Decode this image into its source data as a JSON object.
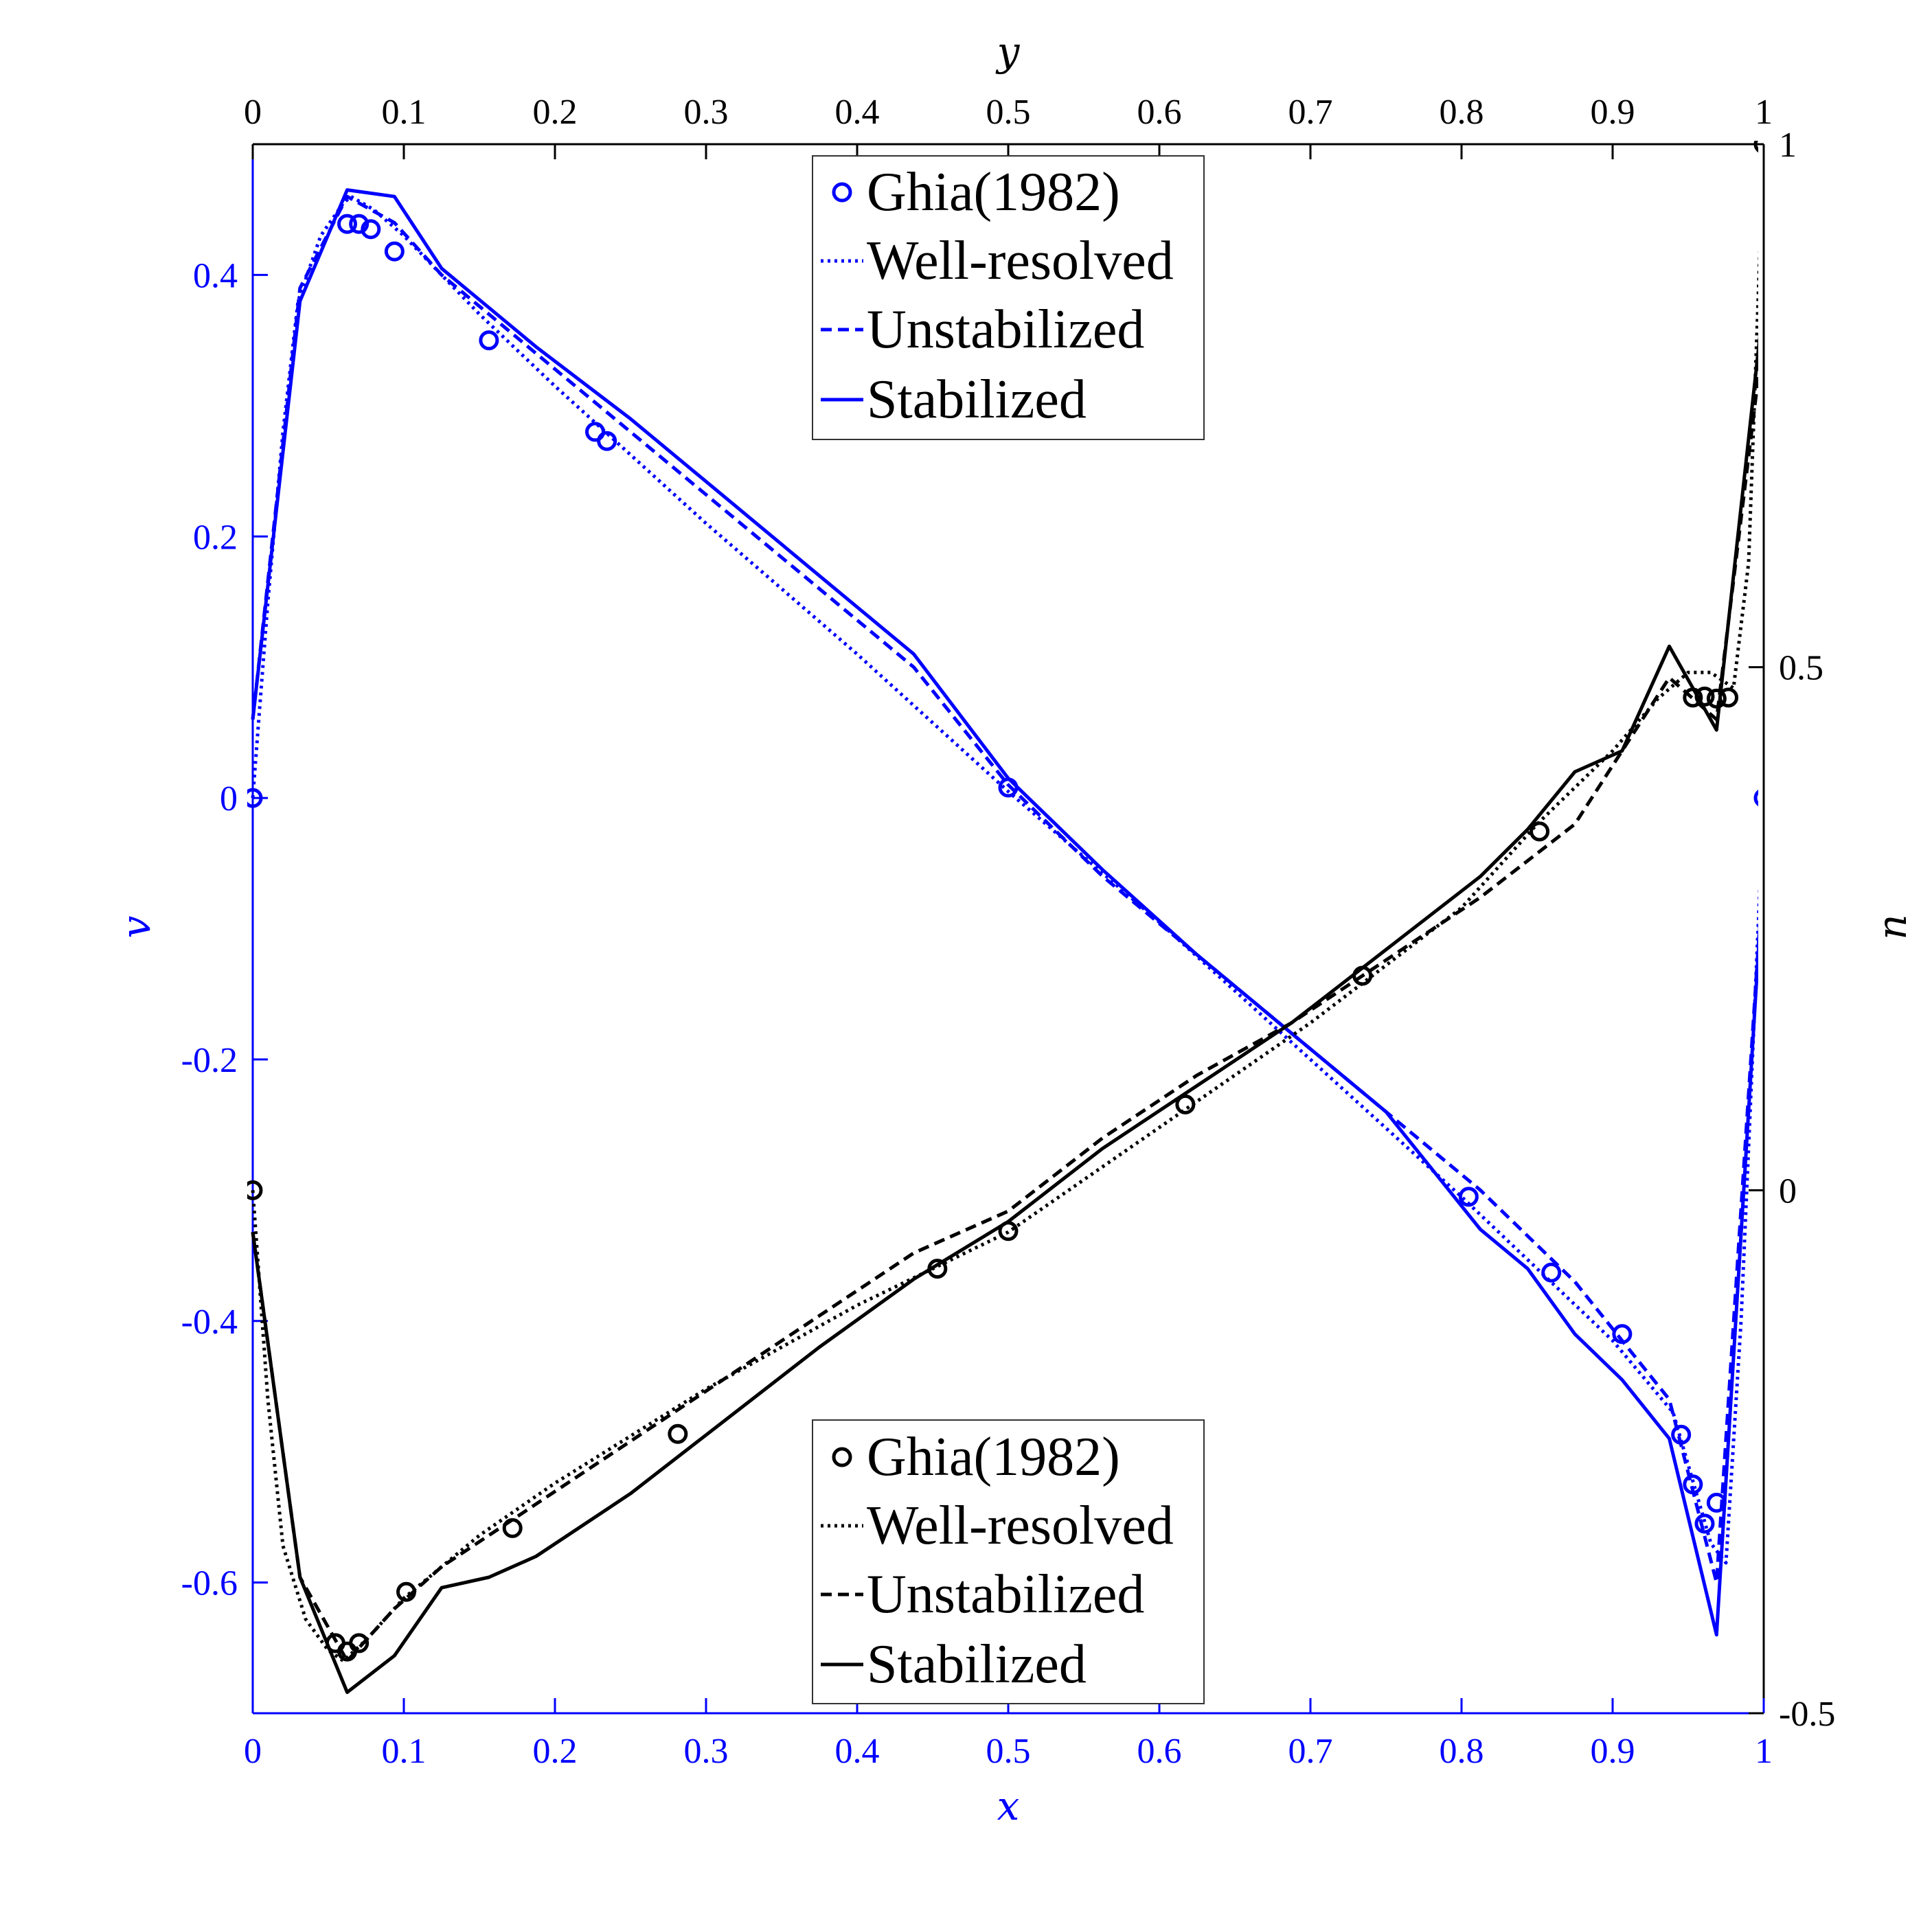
{
  "chart_data": {
    "type": "line",
    "axes": {
      "x": {
        "label": "x",
        "lim": [
          0,
          1
        ],
        "ticks": [
          "0",
          "0.1",
          "0.2",
          "0.3",
          "0.4",
          "0.5",
          "0.6",
          "0.7",
          "0.8",
          "0.9",
          "1"
        ],
        "color": "#0000ff"
      },
      "y_left": {
        "label": "v",
        "lim": [
          -0.7,
          0.5
        ],
        "ticks": [
          "-0.6",
          "-0.4",
          "-0.2",
          "0",
          "0.2",
          "0.4"
        ],
        "tick_values": [
          -0.6,
          -0.4,
          -0.2,
          0,
          0.2,
          0.4
        ],
        "color": "#0000ff"
      },
      "y_top": {
        "label": "y",
        "lim": [
          0,
          1
        ],
        "ticks": [
          "0",
          "0.1",
          "0.2",
          "0.3",
          "0.4",
          "0.5",
          "0.6",
          "0.7",
          "0.8",
          "0.9",
          "1"
        ],
        "color": "#000000"
      },
      "y_right": {
        "label": "u",
        "lim": [
          -0.5,
          1
        ],
        "ticks": [
          "-0.5",
          "0",
          "0.5",
          "1"
        ],
        "tick_values": [
          -0.5,
          0,
          0.5,
          1
        ],
        "color": "#000000"
      }
    },
    "legends": [
      {
        "position": "top-center",
        "color": "#0000ff",
        "entries": [
          "Ghia(1982)",
          "Well-resolved",
          "Unstabilized",
          "Stabilized"
        ]
      },
      {
        "position": "bottom-center",
        "color": "#000000",
        "entries": [
          "Ghia(1982)",
          "Well-resolved",
          "Unstabilized",
          "Stabilized"
        ]
      }
    ],
    "v_profile": {
      "axis": "x vs v",
      "color": "#0000ff",
      "ghia": {
        "x": [
          0,
          0.0625,
          0.0703,
          0.0781,
          0.0938,
          0.1563,
          0.2266,
          0.2344,
          0.5,
          0.8047,
          0.8594,
          0.9063,
          0.9453,
          0.9531,
          0.9609,
          0.9688,
          1
        ],
        "v": [
          0,
          0.439,
          0.439,
          0.435,
          0.418,
          0.35,
          0.28,
          0.273,
          0.008,
          -0.305,
          -0.363,
          -0.41,
          -0.487,
          -0.525,
          -0.555,
          -0.539,
          0
        ]
      },
      "well_resolved": {
        "x": [
          0,
          0.01,
          0.02,
          0.03,
          0.045,
          0.06,
          0.065,
          0.08,
          0.1,
          0.15,
          0.2,
          0.3,
          0.4,
          0.5,
          0.6,
          0.7,
          0.8,
          0.85,
          0.9,
          0.94,
          0.955,
          0.965,
          0.975,
          0.985,
          1
        ],
        "v": [
          0,
          0.15,
          0.28,
          0.38,
          0.43,
          0.455,
          0.46,
          0.45,
          0.43,
          0.37,
          0.315,
          0.21,
          0.11,
          0.005,
          -0.095,
          -0.2,
          -0.305,
          -0.36,
          -0.415,
          -0.47,
          -0.53,
          -0.57,
          -0.585,
          -0.4,
          0
        ]
      },
      "unstabilized": {
        "x": [
          0,
          0.03125,
          0.0625,
          0.09375,
          0.125,
          0.15625,
          0.1875,
          0.25,
          0.3125,
          0.375,
          0.4375,
          0.5,
          0.5625,
          0.625,
          0.6875,
          0.75,
          0.8125,
          0.875,
          0.9375,
          0.96875,
          1
        ],
        "v": [
          0.06,
          0.39,
          0.46,
          0.44,
          0.4,
          0.37,
          0.34,
          0.28,
          0.22,
          0.16,
          0.1,
          0.01,
          -0.06,
          -0.12,
          -0.18,
          -0.24,
          -0.3,
          -0.37,
          -0.46,
          -0.6,
          -0.05
        ]
      },
      "stabilized": {
        "x": [
          0,
          0.03125,
          0.0625,
          0.09375,
          0.125,
          0.15625,
          0.1875,
          0.25,
          0.3125,
          0.375,
          0.4375,
          0.5,
          0.5625,
          0.625,
          0.6875,
          0.75,
          0.8125,
          0.84375,
          0.875,
          0.90625,
          0.9375,
          0.96875,
          1
        ],
        "v": [
          0.06,
          0.38,
          0.465,
          0.46,
          0.405,
          0.375,
          0.345,
          0.29,
          0.23,
          0.17,
          0.11,
          0.015,
          -0.055,
          -0.12,
          -0.18,
          -0.24,
          -0.33,
          -0.36,
          -0.41,
          -0.445,
          -0.49,
          -0.64,
          -0.05
        ]
      }
    },
    "u_profile": {
      "axis": "y vs u",
      "color": "#000000",
      "ghia": {
        "y": [
          0,
          0.0547,
          0.0625,
          0.0703,
          0.1016,
          0.1719,
          0.2813,
          0.4531,
          0.5,
          0.6172,
          0.7344,
          0.8516,
          0.9531,
          0.9609,
          0.9688,
          0.9766,
          1
        ],
        "u": [
          0,
          -0.433,
          -0.441,
          -0.433,
          -0.384,
          -0.323,
          -0.233,
          -0.075,
          -0.039,
          0.082,
          0.205,
          0.343,
          0.471,
          0.472,
          0.47,
          0.471,
          1
        ]
      },
      "well_resolved": {
        "y": [
          0,
          0.01,
          0.02,
          0.035,
          0.05,
          0.06,
          0.075,
          0.1,
          0.15,
          0.2,
          0.3,
          0.4,
          0.5,
          0.6,
          0.7,
          0.8,
          0.85,
          0.9,
          0.93,
          0.95,
          0.965,
          0.98,
          0.99,
          1
        ],
        "u": [
          0,
          -0.2,
          -0.34,
          -0.41,
          -0.44,
          -0.45,
          -0.43,
          -0.39,
          -0.33,
          -0.28,
          -0.19,
          -0.11,
          -0.04,
          0.06,
          0.16,
          0.27,
          0.35,
          0.42,
          0.47,
          0.495,
          0.495,
          0.48,
          0.6,
          1
        ]
      },
      "unstabilized": {
        "y": [
          0,
          0.03125,
          0.0625,
          0.09375,
          0.125,
          0.15625,
          0.1875,
          0.25,
          0.3125,
          0.375,
          0.4375,
          0.5,
          0.5625,
          0.625,
          0.6875,
          0.75,
          0.8125,
          0.875,
          0.90625,
          0.9375,
          0.96875,
          1
        ],
        "u": [
          -0.04,
          -0.37,
          -0.45,
          -0.4,
          -0.36,
          -0.33,
          -0.3,
          -0.24,
          -0.18,
          -0.12,
          -0.06,
          -0.02,
          0.05,
          0.11,
          0.16,
          0.22,
          0.28,
          0.35,
          0.42,
          0.49,
          0.45,
          0.82
        ]
      },
      "stabilized": {
        "y": [
          0,
          0.03125,
          0.0625,
          0.09375,
          0.125,
          0.15625,
          0.1875,
          0.25,
          0.3125,
          0.375,
          0.4375,
          0.5,
          0.5625,
          0.625,
          0.6875,
          0.75,
          0.8125,
          0.84375,
          0.875,
          0.90625,
          0.9375,
          0.96875,
          1
        ],
        "u": [
          -0.04,
          -0.37,
          -0.48,
          -0.445,
          -0.38,
          -0.37,
          -0.35,
          -0.29,
          -0.22,
          -0.15,
          -0.085,
          -0.03,
          0.04,
          0.1,
          0.16,
          0.23,
          0.3,
          0.345,
          0.4,
          0.42,
          0.52,
          0.44,
          0.85
        ]
      }
    }
  }
}
